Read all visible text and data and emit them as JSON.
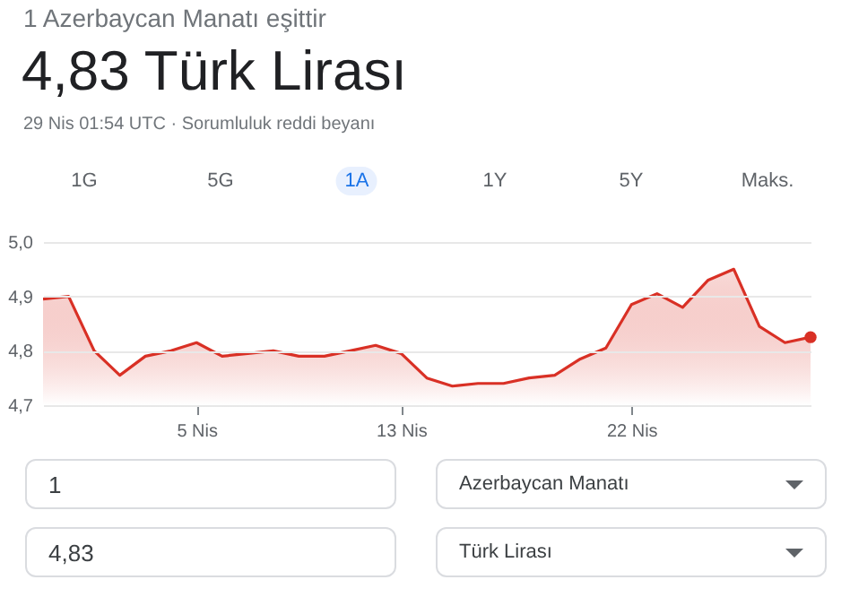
{
  "chart_data": {
    "type": "area",
    "subtitle": "1 Azerbaycan Manatı eşittir",
    "title": "4,83 Türk Lirası",
    "annotations": [
      "29 Nis 01:54 UTC · Sorumluluk reddi beyanı",
      "1G",
      "5G",
      "1A",
      "1Y",
      "5Y",
      "Maks.",
      "1",
      "Azerbaycan Manatı",
      "4,83",
      "Türk Lirası"
    ],
    "x": [
      "--03-30",
      "--03-31",
      "--04-01",
      "--04-02",
      "--04-03",
      "--04-04",
      "--04-05",
      "--04-06",
      "--04-07",
      "--04-08",
      "--04-09",
      "--04-10",
      "--04-11",
      "--04-12",
      "--04-13",
      "--04-14",
      "--04-15",
      "--04-16",
      "--04-17",
      "--04-18",
      "--04-19",
      "--04-20",
      "--04-21",
      "--04-22",
      "--04-23",
      "--04-24",
      "--04-25",
      "--04-26",
      "--04-27",
      "--04-28",
      "--04-29"
    ],
    "series": [
      {
        "color": "#d93025",
        "values": [
          4.895,
          4.9,
          4.8,
          4.755,
          4.79,
          4.8,
          4.815,
          4.79,
          4.795,
          4.8,
          4.79,
          4.79,
          4.8,
          4.81,
          4.795,
          4.75,
          4.735,
          4.74,
          4.74,
          4.75,
          4.755,
          4.785,
          4.805,
          4.885,
          4.905,
          4.88,
          4.93,
          4.95,
          4.845,
          4.815,
          4.825
        ]
      },
      {
        "type": "scatter",
        "color": "#d93025",
        "x": [
          "--04-29"
        ],
        "values": [
          4.825
        ]
      }
    ],
    "xlim": [
      "--03-30",
      "--04-29"
    ],
    "xticks": [
      {
        "value": "--04-05",
        "label": "5 Nis"
      },
      {
        "value": "--04-13",
        "label": "13 Nis"
      },
      {
        "value": "--04-22",
        "label": "22 Nis"
      }
    ],
    "ylim": [
      4.7,
      5.0
    ],
    "yticks": [
      {
        "value": 4.7,
        "label": "4,7"
      },
      {
        "value": 4.8,
        "label": "4,8"
      },
      {
        "value": 4.9,
        "label": "4,9"
      },
      {
        "value": 5.0,
        "label": "5,0"
      }
    ],
    "grid": "y"
  }
}
